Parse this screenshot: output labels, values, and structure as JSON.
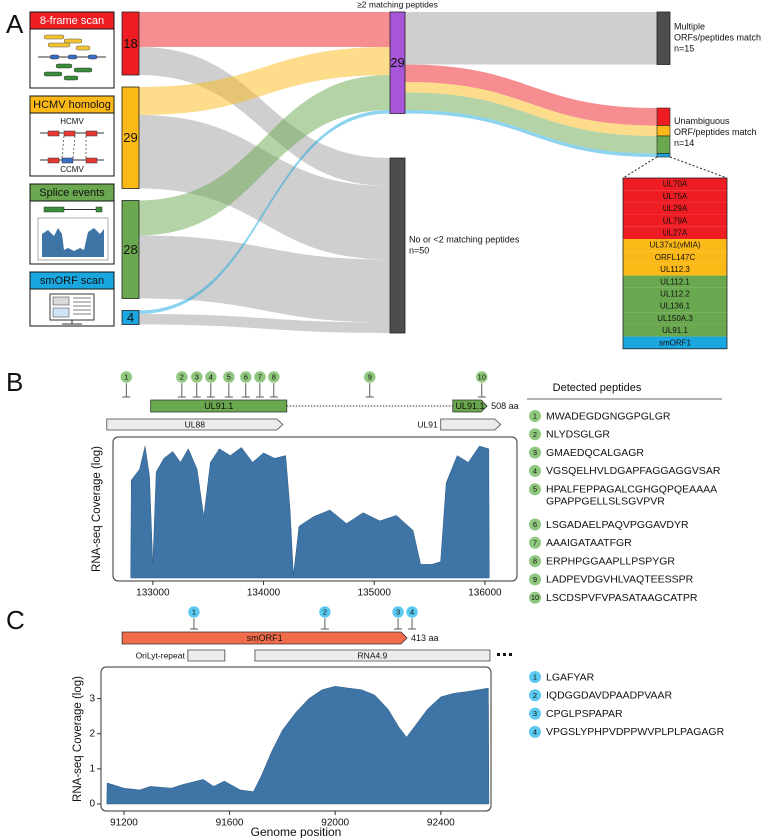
{
  "panel_labels": [
    "A",
    "B",
    "C"
  ],
  "chart_data": [
    {
      "type": "sankey",
      "nodes": [
        {
          "name": "8-frame scan",
          "value": 18,
          "color": "#ee1d23"
        },
        {
          "name": "HCMV homolog",
          "value": 29,
          "color": "#fbb917"
        },
        {
          "name": "Splice events",
          "value": 28,
          "color": "#6aa84f"
        },
        {
          "name": "smORF scan",
          "value": 4,
          "color": "#1aa7e0"
        },
        {
          "name": "≥2 matching peptides",
          "value": 29,
          "color": "#a855d8"
        },
        {
          "name": "No or <2 matching peptides",
          "value": 50,
          "value_label": "n=50",
          "color": "#4d4d4d"
        },
        {
          "name_lines": [
            "Multiple",
            "ORFs/peptides match"
          ],
          "value": 15,
          "value_label": "n=15",
          "color": "#4d4d4d"
        },
        {
          "name_lines": [
            "Unambiguous",
            "ORF/peptides match"
          ],
          "value": 14,
          "value_label": "n=14"
        }
      ],
      "links": [
        {
          "source": 0,
          "target": 4,
          "value": 10,
          "color": "#ee1d23"
        },
        {
          "source": 0,
          "target": 5,
          "value": 8,
          "color": "#a0a0a0"
        },
        {
          "source": 1,
          "target": 4,
          "value": 8,
          "color": "#fbb917"
        },
        {
          "source": 1,
          "target": 5,
          "value": 21,
          "color": "#a0a0a0"
        },
        {
          "source": 2,
          "target": 4,
          "value": 10,
          "color": "#6aa84f"
        },
        {
          "source": 2,
          "target": 5,
          "value": 18,
          "color": "#a0a0a0"
        },
        {
          "source": 3,
          "target": 4,
          "value": 1,
          "color": "#1aa7e0"
        },
        {
          "source": 3,
          "target": 5,
          "value": 3,
          "color": "#a0a0a0"
        },
        {
          "source": 4,
          "target": 6,
          "value": 15,
          "color": "#a0a0a0"
        },
        {
          "source": 4,
          "target": 7,
          "value": 5,
          "color": "#ee1d23"
        },
        {
          "source": 4,
          "target": 7,
          "value": 3,
          "color": "#fbb917"
        },
        {
          "source": 4,
          "target": 7,
          "value": 5,
          "color": "#6aa84f"
        },
        {
          "source": 4,
          "target": 7,
          "value": 1,
          "color": "#1aa7e0"
        }
      ],
      "homolog_icon_labels": [
        "HCMV",
        "CCMV"
      ],
      "orf_list": [
        {
          "name": "UL70A",
          "group": 0
        },
        {
          "name": "UL75A",
          "group": 0
        },
        {
          "name": "UL29A",
          "group": 0
        },
        {
          "name": "UL79A",
          "group": 0
        },
        {
          "name": "UL27A",
          "group": 0
        },
        {
          "name": "UL37x1(vMIA)",
          "group": 1
        },
        {
          "name": "ORFL147C",
          "group": 1
        },
        {
          "name": "UL112.3",
          "group": 1
        },
        {
          "name": "UL112.1",
          "group": 2
        },
        {
          "name": "UL112.2",
          "group": 2
        },
        {
          "name": "UL136.1",
          "group": 2
        },
        {
          "name": "UL150A.3",
          "group": 2
        },
        {
          "name": "UL91.1",
          "group": 2
        },
        {
          "name": "smORF1",
          "group": 3
        }
      ]
    },
    {
      "type": "area",
      "ylabel": "RNA-seq Coverage (log)",
      "color": "#3f74a6",
      "xlim": [
        132640,
        136290
      ],
      "ylim": [
        0,
        1
      ],
      "xticks": [
        133000,
        134000,
        135000,
        136000
      ],
      "x": [
        132800,
        132805,
        132880,
        132930,
        132970,
        133000,
        133030,
        133100,
        133180,
        133250,
        133320,
        133400,
        133460,
        133520,
        133600,
        133700,
        133800,
        133900,
        134000,
        134100,
        134200,
        134240,
        134270,
        134320,
        134450,
        134600,
        134750,
        134900,
        135050,
        135200,
        135350,
        135420,
        135520,
        135600,
        135650,
        135750,
        135850,
        135950,
        136035,
        136040
      ],
      "values": [
        0,
        0.72,
        0.8,
        0.97,
        0.75,
        0.1,
        0.78,
        0.88,
        0.93,
        0.85,
        0.95,
        0.8,
        0.45,
        0.85,
        0.95,
        0.9,
        0.96,
        0.85,
        0.92,
        0.88,
        0.9,
        0.5,
        0.02,
        0.38,
        0.45,
        0.5,
        0.4,
        0.48,
        0.42,
        0.46,
        0.35,
        0.1,
        0.1,
        0.12,
        0.7,
        0.9,
        0.85,
        0.97,
        0.95,
        0
      ],
      "protein": {
        "name": "UL91.1",
        "length_label": "508 aa",
        "color": "#6aa84f",
        "exons": [
          [
            132980,
            134210
          ],
          [
            135710,
            136020
          ]
        ]
      },
      "gene_shape": "arrow",
      "genes": [
        {
          "name": "UL88",
          "start": 132584,
          "end": 134174
        },
        {
          "name": "UL91",
          "start": 135601,
          "end": 136142
        }
      ],
      "marker_color": "#8fc77e",
      "peptides_title": "Detected peptides",
      "peptides": [
        {
          "id": 1,
          "pos": 132760,
          "sequence": "MWADEGDGNGGPGLGR"
        },
        {
          "id": 2,
          "pos": 133262,
          "sequence": "NLYDSGLGR"
        },
        {
          "id": 3,
          "pos": 133397,
          "sequence": "GMAEDQCALGAGR"
        },
        {
          "id": 4,
          "pos": 133524,
          "sequence": "VGSQELHVLDGAPFAGGAGGVSAR"
        },
        {
          "id": 5,
          "pos": 133687,
          "sequence": [
            "HPALFEPPAGALCGHGQPQEAAAA",
            "GPAPPGELLSLSGVPVR"
          ]
        },
        {
          "id": 6,
          "pos": 133840,
          "sequence": "LSGADAELPAQVPGGAVDYR"
        },
        {
          "id": 7,
          "pos": 133967,
          "sequence": "AAAIGATAATFGR"
        },
        {
          "id": 8,
          "pos": 134093,
          "sequence": "ERPHPGGAAPLLPSPYGR"
        },
        {
          "id": 9,
          "pos": 134960,
          "sequence": "LADPEVDGVHLVAQTEESSPR"
        },
        {
          "id": 10,
          "pos": 135972,
          "sequence": "LSCDSPVFVPASATAAGCATPR"
        }
      ]
    },
    {
      "type": "area",
      "ylabel": "RNA-seq Coverage (log)",
      "xlabel": "Genome position",
      "color": "#3f74a6",
      "xlim": [
        91113,
        92590
      ],
      "ylim": [
        -0.2,
        3.9
      ],
      "xticks": [
        91200,
        91600,
        92000,
        92400
      ],
      "yticks": [
        0,
        1,
        2,
        3
      ],
      "x": [
        91135,
        91136,
        91200,
        91260,
        91300,
        91380,
        91420,
        91500,
        91540,
        91580,
        91640,
        91690,
        91720,
        91760,
        91800,
        91850,
        91900,
        91950,
        92000,
        92050,
        92100,
        92150,
        92200,
        92240,
        92270,
        92300,
        92350,
        92400,
        92450,
        92500,
        92580,
        92582
      ],
      "values": [
        0,
        0.6,
        0.45,
        0.4,
        0.5,
        0.45,
        0.55,
        0.7,
        0.5,
        0.65,
        0.4,
        0.35,
        0.8,
        1.5,
        2.1,
        2.6,
        3.0,
        3.25,
        3.35,
        3.3,
        3.25,
        3.1,
        2.7,
        2.2,
        1.9,
        2.2,
        2.7,
        3.05,
        3.15,
        3.2,
        3.3,
        0
      ],
      "protein": {
        "name": "smORF1",
        "length_label": "413 aa",
        "color": "#f26b4b",
        "exons": [
          [
            91193,
            92272
          ]
        ]
      },
      "gene_shape": "box",
      "genes": [
        {
          "name": "OriLyt-repeat",
          "start": 91442,
          "end": 91582
        },
        {
          "name": "RNA4.9",
          "start": 91696,
          "end": 92586
        }
      ],
      "marker_color": "#5bc8f0",
      "peptides": [
        {
          "id": 1,
          "pos": 91465,
          "sequence": "LGAFYAR"
        },
        {
          "id": 2,
          "pos": 91961,
          "sequence": "IQDGGDAVDPAADPVAAR"
        },
        {
          "id": 3,
          "pos": 92238,
          "sequence": "CPGLPSPAPAR"
        },
        {
          "id": 4,
          "pos": 92291,
          "sequence": "VPGSLYPHPVDPPWVPLPLPAGAGR"
        }
      ]
    }
  ]
}
